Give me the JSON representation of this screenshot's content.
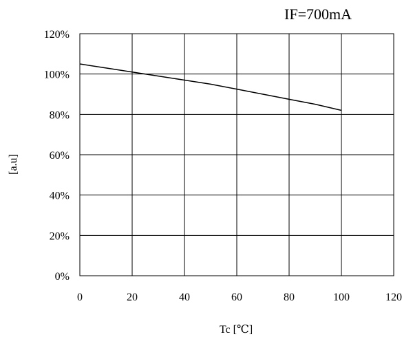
{
  "chart_data": {
    "type": "line",
    "title": "IF=700mA",
    "xlabel": "Tc [℃]",
    "ylabel": "[a.u]",
    "xlim": [
      0,
      120
    ],
    "ylim": [
      0,
      120
    ],
    "x_ticks": [
      0,
      20,
      40,
      60,
      80,
      100,
      120
    ],
    "x_tick_labels": [
      "0",
      "20",
      "40",
      "60",
      "80",
      "100",
      "120"
    ],
    "y_ticks": [
      0,
      20,
      40,
      60,
      80,
      100,
      120
    ],
    "y_tick_labels": [
      "0%",
      "20%",
      "40%",
      "60%",
      "80%",
      "100%",
      "120%"
    ],
    "grid": true,
    "series": [
      {
        "color": "#000000",
        "x": [
          0,
          10,
          20,
          30,
          40,
          50,
          60,
          70,
          80,
          90,
          100
        ],
        "y": [
          105,
          103,
          101,
          99,
          97,
          95,
          92.5,
          90,
          87.5,
          85,
          82
        ]
      }
    ]
  }
}
